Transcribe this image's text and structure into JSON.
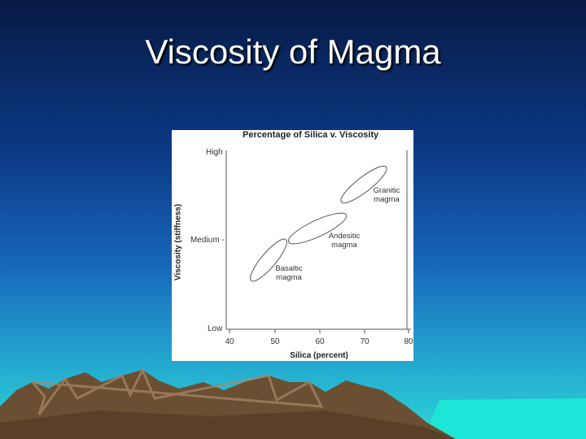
{
  "slide": {
    "title": "Viscosity of Magma"
  },
  "figure": {
    "title": "Percentage of Silica v. Viscosity",
    "y_axis_label": "Viscosity (stiffness)",
    "x_axis_label": "Silica (percent)",
    "y_labels": [
      "High",
      "Medium -",
      "Low"
    ],
    "x_ticks": [
      40,
      50,
      60,
      70,
      80
    ],
    "annotations": [
      "Granitic magma",
      "Andesitic magma",
      "Basaltic magma"
    ]
  }
}
